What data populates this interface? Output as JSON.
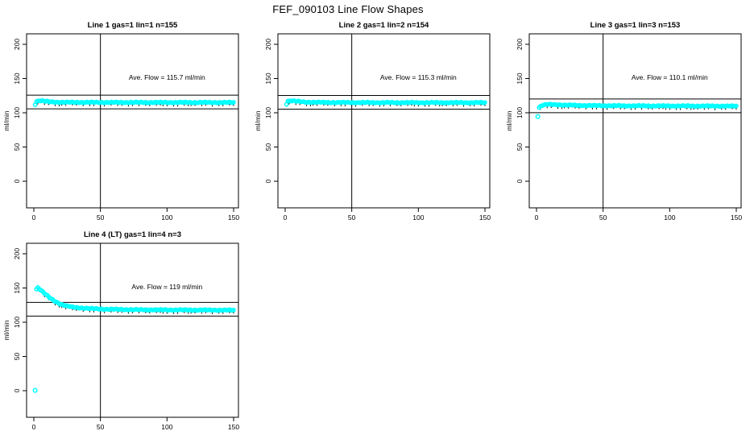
{
  "main_title": "FEF_090103  Line Flow Shapes",
  "colors": {
    "points": "#00FFFF",
    "axis": "#000000",
    "background": "#FFFFFF"
  },
  "chart_data": {
    "type": "scatter",
    "layout": {
      "rows": 2,
      "cols": 3,
      "filled_cells": 4,
      "grid": false,
      "legend": "none"
    },
    "shared": {
      "xlabel": "",
      "ylabel": "ml/min",
      "x_ticks": [
        0,
        50,
        100,
        150
      ],
      "y_ticks": [
        0,
        50,
        100,
        150,
        200
      ],
      "xlim": [
        -8,
        156
      ],
      "ylim": [
        -39,
        215
      ],
      "vline_x": 50,
      "annotation_position": {
        "x": 100,
        "y": 152
      }
    },
    "panels": [
      {
        "title": "Line 1 gas=1 lin=1 n=155",
        "annotation": "Ave. Flow =  115.7  ml/min",
        "ave_flow_ml_min": 115.7,
        "n": 155,
        "hlines": [
          125.7,
          105.7
        ],
        "profile_keypoints": [
          [
            1,
            112.5
          ],
          [
            2,
            116.6
          ],
          [
            4,
            117.8
          ],
          [
            7,
            117.2
          ],
          [
            12,
            115.9
          ],
          [
            20,
            115.4
          ],
          [
            40,
            115.2
          ],
          [
            80,
            115.1
          ],
          [
            150,
            115.0
          ]
        ],
        "outliers": []
      },
      {
        "title": "Line 2 gas=1 lin=2 n=154",
        "annotation": "Ave. Flow =  115.3  ml/min",
        "ave_flow_ml_min": 115.3,
        "n": 154,
        "hlines": [
          125.3,
          105.3
        ],
        "profile_keypoints": [
          [
            1,
            113.0
          ],
          [
            2,
            117.2
          ],
          [
            5,
            117.6
          ],
          [
            9,
            116.6
          ],
          [
            15,
            115.6
          ],
          [
            30,
            115.1
          ],
          [
            60,
            114.9
          ],
          [
            150,
            114.8
          ]
        ],
        "outliers": []
      },
      {
        "title": "Line 3 gas=1 lin=3 n=153",
        "annotation": "Ave. Flow =  110.1  ml/min",
        "ave_flow_ml_min": 110.1,
        "n": 153,
        "hlines": [
          120.1,
          100.1
        ],
        "profile_keypoints": [
          [
            2,
            107.8
          ],
          [
            4,
            110.8
          ],
          [
            8,
            112.2
          ],
          [
            15,
            111.8
          ],
          [
            30,
            110.8
          ],
          [
            60,
            110.2
          ],
          [
            100,
            110.0
          ],
          [
            150,
            109.7
          ]
        ],
        "outliers": [
          [
            1,
            94.5
          ]
        ]
      },
      {
        "title": "Line 4 (LT) gas=1 lin=4 n=3",
        "annotation": "Ave. Flow =  119  ml/min",
        "ave_flow_ml_min": 119,
        "n": 3,
        "hlines": [
          129,
          109
        ],
        "profile_keypoints": [
          [
            2,
            148.5
          ],
          [
            3,
            150.5
          ],
          [
            5,
            147.5
          ],
          [
            8,
            142.0
          ],
          [
            12,
            135.5
          ],
          [
            16,
            130.5
          ],
          [
            20,
            126.5
          ],
          [
            25,
            123.5
          ],
          [
            30,
            121.8
          ],
          [
            40,
            120.2
          ],
          [
            55,
            119.0
          ],
          [
            75,
            118.3
          ],
          [
            100,
            118.0
          ],
          [
            125,
            117.8
          ],
          [
            150,
            117.6
          ]
        ],
        "outliers": [
          [
            1,
            0.5
          ]
        ]
      }
    ]
  }
}
